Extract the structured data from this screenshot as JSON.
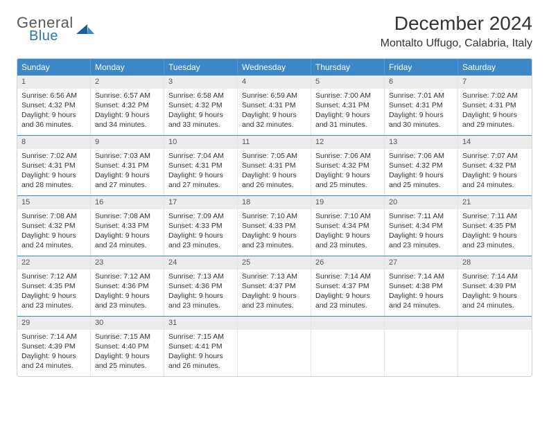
{
  "logo": {
    "general": "General",
    "blue": "Blue"
  },
  "title": "December 2024",
  "location": "Montalto Uffugo, Calabria, Italy",
  "colors": {
    "header_bg": "#3b87c8",
    "header_text": "#ffffff",
    "daynum_bg": "#ececec",
    "border": "#d0d0d0",
    "cell_border": "#e5e5e5",
    "text": "#333333"
  },
  "weekdays": [
    "Sunday",
    "Monday",
    "Tuesday",
    "Wednesday",
    "Thursday",
    "Friday",
    "Saturday"
  ],
  "weeks": [
    [
      {
        "day": "1",
        "sunrise": "Sunrise: 6:56 AM",
        "sunset": "Sunset: 4:32 PM",
        "daylight": "Daylight: 9 hours and 36 minutes."
      },
      {
        "day": "2",
        "sunrise": "Sunrise: 6:57 AM",
        "sunset": "Sunset: 4:32 PM",
        "daylight": "Daylight: 9 hours and 34 minutes."
      },
      {
        "day": "3",
        "sunrise": "Sunrise: 6:58 AM",
        "sunset": "Sunset: 4:32 PM",
        "daylight": "Daylight: 9 hours and 33 minutes."
      },
      {
        "day": "4",
        "sunrise": "Sunrise: 6:59 AM",
        "sunset": "Sunset: 4:31 PM",
        "daylight": "Daylight: 9 hours and 32 minutes."
      },
      {
        "day": "5",
        "sunrise": "Sunrise: 7:00 AM",
        "sunset": "Sunset: 4:31 PM",
        "daylight": "Daylight: 9 hours and 31 minutes."
      },
      {
        "day": "6",
        "sunrise": "Sunrise: 7:01 AM",
        "sunset": "Sunset: 4:31 PM",
        "daylight": "Daylight: 9 hours and 30 minutes."
      },
      {
        "day": "7",
        "sunrise": "Sunrise: 7:02 AM",
        "sunset": "Sunset: 4:31 PM",
        "daylight": "Daylight: 9 hours and 29 minutes."
      }
    ],
    [
      {
        "day": "8",
        "sunrise": "Sunrise: 7:02 AM",
        "sunset": "Sunset: 4:31 PM",
        "daylight": "Daylight: 9 hours and 28 minutes."
      },
      {
        "day": "9",
        "sunrise": "Sunrise: 7:03 AM",
        "sunset": "Sunset: 4:31 PM",
        "daylight": "Daylight: 9 hours and 27 minutes."
      },
      {
        "day": "10",
        "sunrise": "Sunrise: 7:04 AM",
        "sunset": "Sunset: 4:31 PM",
        "daylight": "Daylight: 9 hours and 27 minutes."
      },
      {
        "day": "11",
        "sunrise": "Sunrise: 7:05 AM",
        "sunset": "Sunset: 4:31 PM",
        "daylight": "Daylight: 9 hours and 26 minutes."
      },
      {
        "day": "12",
        "sunrise": "Sunrise: 7:06 AM",
        "sunset": "Sunset: 4:32 PM",
        "daylight": "Daylight: 9 hours and 25 minutes."
      },
      {
        "day": "13",
        "sunrise": "Sunrise: 7:06 AM",
        "sunset": "Sunset: 4:32 PM",
        "daylight": "Daylight: 9 hours and 25 minutes."
      },
      {
        "day": "14",
        "sunrise": "Sunrise: 7:07 AM",
        "sunset": "Sunset: 4:32 PM",
        "daylight": "Daylight: 9 hours and 24 minutes."
      }
    ],
    [
      {
        "day": "15",
        "sunrise": "Sunrise: 7:08 AM",
        "sunset": "Sunset: 4:32 PM",
        "daylight": "Daylight: 9 hours and 24 minutes."
      },
      {
        "day": "16",
        "sunrise": "Sunrise: 7:08 AM",
        "sunset": "Sunset: 4:33 PM",
        "daylight": "Daylight: 9 hours and 24 minutes."
      },
      {
        "day": "17",
        "sunrise": "Sunrise: 7:09 AM",
        "sunset": "Sunset: 4:33 PM",
        "daylight": "Daylight: 9 hours and 23 minutes."
      },
      {
        "day": "18",
        "sunrise": "Sunrise: 7:10 AM",
        "sunset": "Sunset: 4:33 PM",
        "daylight": "Daylight: 9 hours and 23 minutes."
      },
      {
        "day": "19",
        "sunrise": "Sunrise: 7:10 AM",
        "sunset": "Sunset: 4:34 PM",
        "daylight": "Daylight: 9 hours and 23 minutes."
      },
      {
        "day": "20",
        "sunrise": "Sunrise: 7:11 AM",
        "sunset": "Sunset: 4:34 PM",
        "daylight": "Daylight: 9 hours and 23 minutes."
      },
      {
        "day": "21",
        "sunrise": "Sunrise: 7:11 AM",
        "sunset": "Sunset: 4:35 PM",
        "daylight": "Daylight: 9 hours and 23 minutes."
      }
    ],
    [
      {
        "day": "22",
        "sunrise": "Sunrise: 7:12 AM",
        "sunset": "Sunset: 4:35 PM",
        "daylight": "Daylight: 9 hours and 23 minutes."
      },
      {
        "day": "23",
        "sunrise": "Sunrise: 7:12 AM",
        "sunset": "Sunset: 4:36 PM",
        "daylight": "Daylight: 9 hours and 23 minutes."
      },
      {
        "day": "24",
        "sunrise": "Sunrise: 7:13 AM",
        "sunset": "Sunset: 4:36 PM",
        "daylight": "Daylight: 9 hours and 23 minutes."
      },
      {
        "day": "25",
        "sunrise": "Sunrise: 7:13 AM",
        "sunset": "Sunset: 4:37 PM",
        "daylight": "Daylight: 9 hours and 23 minutes."
      },
      {
        "day": "26",
        "sunrise": "Sunrise: 7:14 AM",
        "sunset": "Sunset: 4:37 PM",
        "daylight": "Daylight: 9 hours and 23 minutes."
      },
      {
        "day": "27",
        "sunrise": "Sunrise: 7:14 AM",
        "sunset": "Sunset: 4:38 PM",
        "daylight": "Daylight: 9 hours and 24 minutes."
      },
      {
        "day": "28",
        "sunrise": "Sunrise: 7:14 AM",
        "sunset": "Sunset: 4:39 PM",
        "daylight": "Daylight: 9 hours and 24 minutes."
      }
    ],
    [
      {
        "day": "29",
        "sunrise": "Sunrise: 7:14 AM",
        "sunset": "Sunset: 4:39 PM",
        "daylight": "Daylight: 9 hours and 24 minutes."
      },
      {
        "day": "30",
        "sunrise": "Sunrise: 7:15 AM",
        "sunset": "Sunset: 4:40 PM",
        "daylight": "Daylight: 9 hours and 25 minutes."
      },
      {
        "day": "31",
        "sunrise": "Sunrise: 7:15 AM",
        "sunset": "Sunset: 4:41 PM",
        "daylight": "Daylight: 9 hours and 26 minutes."
      },
      {
        "day": "",
        "sunrise": "",
        "sunset": "",
        "daylight": ""
      },
      {
        "day": "",
        "sunrise": "",
        "sunset": "",
        "daylight": ""
      },
      {
        "day": "",
        "sunrise": "",
        "sunset": "",
        "daylight": ""
      },
      {
        "day": "",
        "sunrise": "",
        "sunset": "",
        "daylight": ""
      }
    ]
  ]
}
